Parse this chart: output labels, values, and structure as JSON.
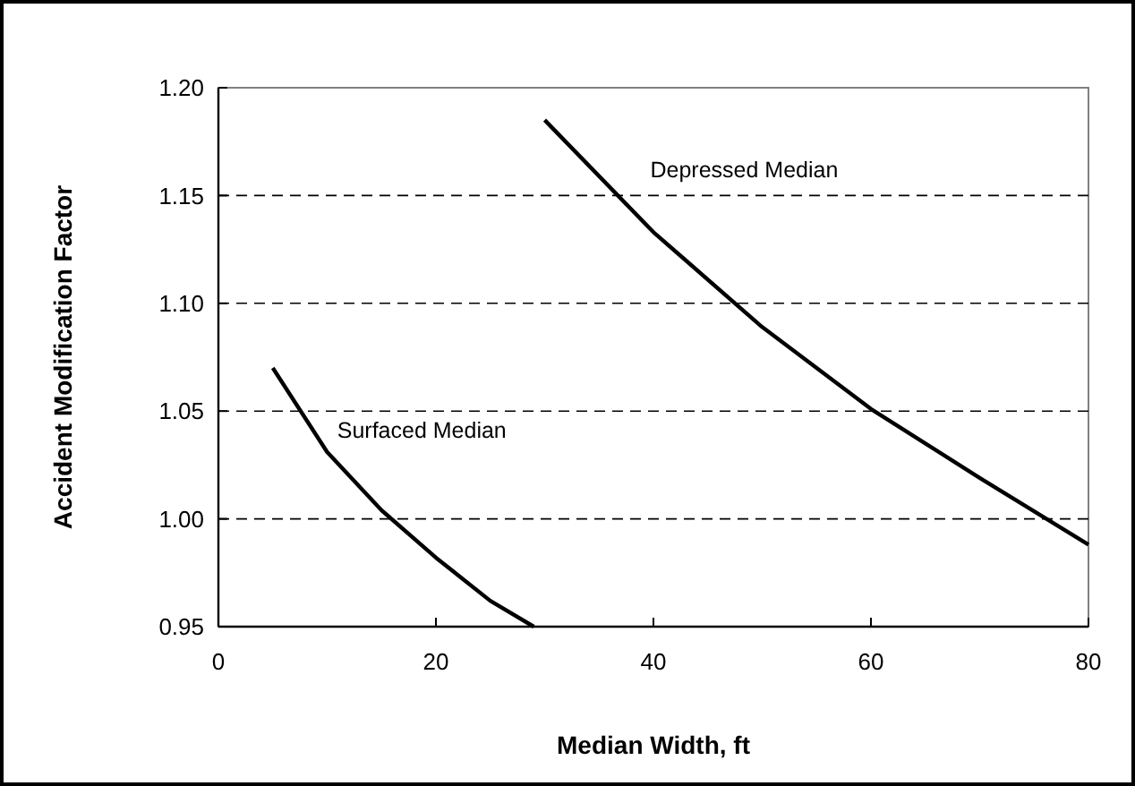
{
  "chart_data": {
    "type": "line",
    "xlabel": "Median Width, ft",
    "ylabel": "Accident Modification Factor",
    "xlim": [
      0,
      80
    ],
    "xticks": [
      0,
      20,
      40,
      60,
      80
    ],
    "ylim": [
      0.95,
      1.2
    ],
    "yticks": [
      {
        "value": 0.95,
        "label": "0.95"
      },
      {
        "value": 1.0,
        "label": "1.00"
      },
      {
        "value": 1.05,
        "label": "1.05"
      },
      {
        "value": 1.1,
        "label": "1.10"
      },
      {
        "value": 1.15,
        "label": "1.15"
      },
      {
        "value": 1.2,
        "label": "1.20"
      }
    ],
    "grid": "y",
    "line_style": "solid",
    "marker": "none",
    "series": [
      {
        "name": "Surfaced Median",
        "color": "#000000",
        "x": [
          5,
          10,
          15,
          20,
          25,
          29
        ],
        "values": [
          1.07,
          1.031,
          1.004,
          0.982,
          0.962,
          0.95
        ]
      },
      {
        "name": "Depressed Median",
        "color": "#000000",
        "x": [
          30,
          40,
          50,
          60,
          70,
          80
        ],
        "values": [
          1.185,
          1.133,
          1.089,
          1.051,
          1.019,
          0.988
        ]
      }
    ]
  }
}
